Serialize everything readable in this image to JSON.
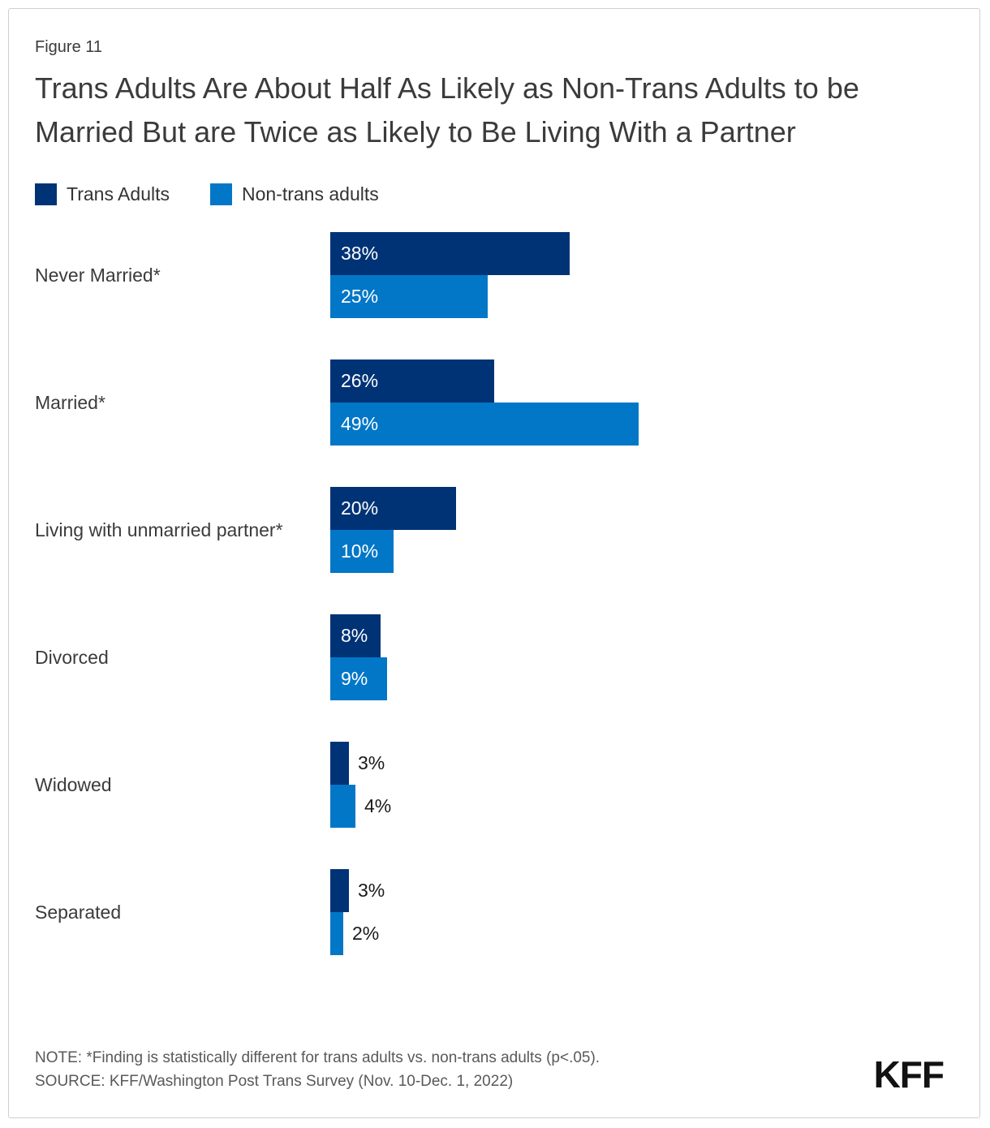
{
  "figure_label": "Figure 11",
  "title": "Trans Adults Are About Half As Likely as Non-Trans Adults to be Married But are Twice as Likely to Be Living With a Partner",
  "note": "NOTE: *Finding is statistically different for trans adults vs. non-trans adults (p<.05).",
  "source": "SOURCE: KFF/Washington Post Trans Survey (Nov. 10-Dec. 1, 2022)",
  "logo": "KFF",
  "colors": {
    "trans_adults": "#003376",
    "non_trans_adults": "#0277C8",
    "title_text": "#3b3b3b",
    "note_text": "#58595b"
  },
  "chart_data": {
    "type": "bar",
    "orientation": "horizontal",
    "categories": [
      "Never Married*",
      "Married*",
      "Living with unmarried partner*",
      "Divorced",
      "Widowed",
      "Separated"
    ],
    "series": [
      {
        "name": "Trans Adults",
        "color": "#003376",
        "values": [
          38,
          26,
          20,
          8,
          3,
          3
        ]
      },
      {
        "name": "Non-trans adults",
        "color": "#0277C8",
        "values": [
          25,
          49,
          10,
          9,
          4,
          2
        ]
      }
    ],
    "value_format": "percent",
    "value_suffix": "%",
    "xlim": [
      0,
      100
    ],
    "grid": false,
    "legend_position": "top-left",
    "value_labels": "inside-start, outside-end for small bars"
  }
}
